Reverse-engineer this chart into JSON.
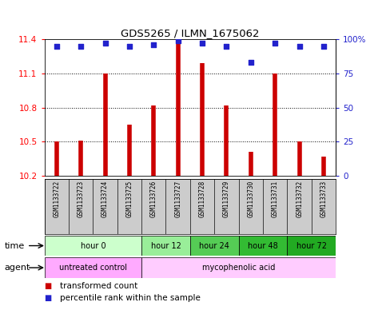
{
  "title": "GDS5265 / ILMN_1675062",
  "samples": [
    "GSM1133722",
    "GSM1133723",
    "GSM1133724",
    "GSM1133725",
    "GSM1133726",
    "GSM1133727",
    "GSM1133728",
    "GSM1133729",
    "GSM1133730",
    "GSM1133731",
    "GSM1133732",
    "GSM1133733"
  ],
  "bar_values": [
    10.5,
    10.51,
    11.1,
    10.65,
    10.82,
    11.38,
    11.19,
    10.82,
    10.41,
    11.1,
    10.5,
    10.37
  ],
  "percentile_values": [
    95,
    95,
    97,
    95,
    96,
    99,
    97,
    95,
    83,
    97,
    95,
    95
  ],
  "y_min": 10.2,
  "y_max": 11.4,
  "y_ticks": [
    10.2,
    10.5,
    10.8,
    11.1,
    11.4
  ],
  "right_y_ticks": [
    0,
    25,
    50,
    75,
    100
  ],
  "right_y_tick_labels": [
    "0",
    "25",
    "50",
    "75",
    "100%"
  ],
  "bar_color": "#cc0000",
  "percentile_color": "#2222cc",
  "background_color": "#ffffff",
  "time_groups": [
    {
      "label": "hour 0",
      "start": 0,
      "end": 3,
      "color": "#ccffcc"
    },
    {
      "label": "hour 12",
      "start": 4,
      "end": 5,
      "color": "#99ee99"
    },
    {
      "label": "hour 24",
      "start": 6,
      "end": 7,
      "color": "#55cc55"
    },
    {
      "label": "hour 48",
      "start": 8,
      "end": 9,
      "color": "#33bb33"
    },
    {
      "label": "hour 72",
      "start": 10,
      "end": 11,
      "color": "#22aa22"
    }
  ],
  "agent_groups": [
    {
      "label": "untreated control",
      "start": 0,
      "end": 3,
      "color": "#ffaaff"
    },
    {
      "label": "mycophenolic acid",
      "start": 4,
      "end": 11,
      "color": "#ffccff"
    }
  ],
  "sample_bg_color": "#cccccc",
  "legend_red_label": "transformed count",
  "legend_blue_label": "percentile rank within the sample",
  "time_label": "time",
  "agent_label": "agent"
}
